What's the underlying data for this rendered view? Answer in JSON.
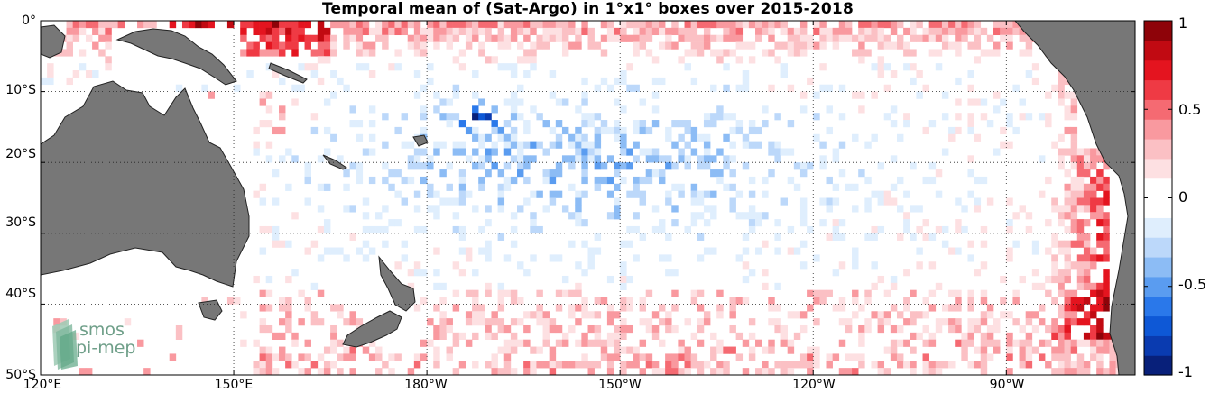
{
  "title": "Temporal mean of (Sat-Argo) in 1°x1° boxes over 2015-2018",
  "lat_labels": [
    "0°",
    "10°S",
    "20°S",
    "30°S",
    "40°S",
    "50°S"
  ],
  "lon_labels": [
    "120°E",
    "150°E",
    "180°W",
    "150°W",
    "120°W",
    "90°W"
  ],
  "colorbar": {
    "labels": [
      "1",
      "0.5",
      "0",
      "-0.5",
      "-1"
    ],
    "range": [
      -1,
      1
    ],
    "colors": [
      "#08207a",
      "#0a3bb0",
      "#0e58d6",
      "#2a78ea",
      "#5a9cf0",
      "#8cbcf5",
      "#bcd8fa",
      "#dfeefd",
      "#ffffff",
      "#ffffff",
      "#fde0e2",
      "#fbc0c4",
      "#f9999f",
      "#f56a72",
      "#ef3a44",
      "#e4141f",
      "#c10a12",
      "#8e0309"
    ]
  },
  "logo": {
    "line1": "smos",
    "line2": "pi-mep"
  },
  "chart_data": {
    "type": "heatmap",
    "title": "Temporal mean of (Sat-Argo) in 1°x1° boxes over 2015-2018",
    "lat_range": [
      -50,
      0
    ],
    "lon_range_east": [
      120,
      290
    ],
    "lat_ticks": [
      "0°",
      "10°S",
      "20°S",
      "30°S",
      "40°S",
      "50°S"
    ],
    "lon_ticks": [
      "120°E",
      "150°E",
      "180°W",
      "150°W",
      "120°W",
      "90°W"
    ],
    "colorbar_range": [
      -1,
      1
    ],
    "grid": "dotted",
    "patterns": [
      {
        "region": "equatorial band 0°-5°S, 150°E-80°W",
        "value": 0.35
      },
      {
        "region": "coast of South America 5°S-30°S",
        "value": 0.6
      },
      {
        "region": "central South Pacific 10°S-30°S, 170°E-130°W",
        "value": -0.25
      },
      {
        "region": "around 13°S, 172°W",
        "value": -0.9
      },
      {
        "region": "south of 40°S",
        "value": 0.25
      },
      {
        "region": "near Papua New Guinea 0°-5°S, 140°E-160°E",
        "value": 0.8
      }
    ]
  }
}
